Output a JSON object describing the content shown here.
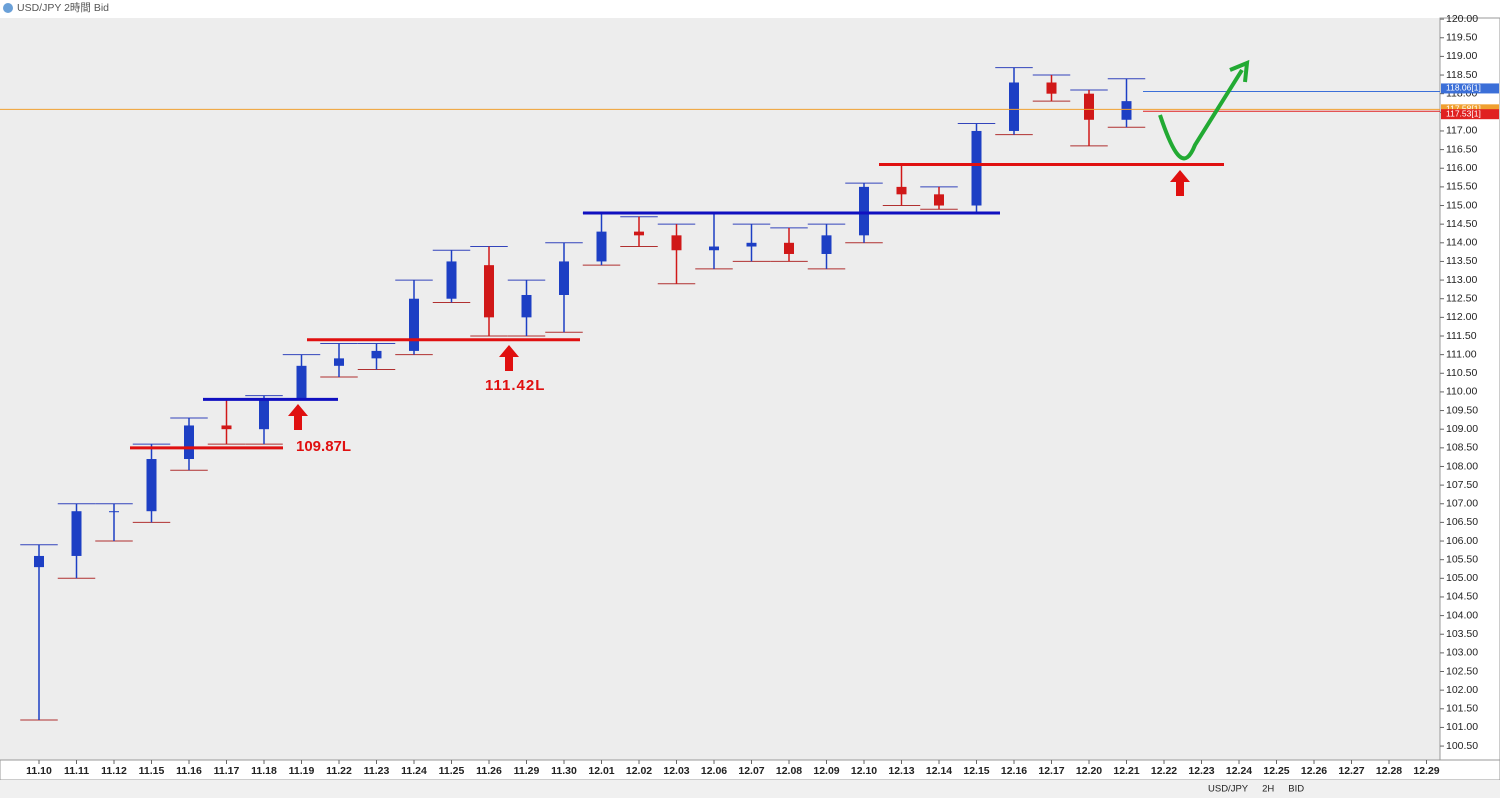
{
  "chart_data": {
    "type": "candlestick",
    "title": "USD/JPY 2時間 Bid",
    "categories": [
      "11.10",
      "11.11",
      "11.12",
      "11.15",
      "11.16",
      "11.17",
      "11.18",
      "11.19",
      "11.22",
      "11.23",
      "11.24",
      "11.25",
      "11.26",
      "11.29",
      "11.30",
      "12.01",
      "12.02",
      "12.03",
      "12.06",
      "12.07",
      "12.08",
      "12.09",
      "12.10",
      "12.13",
      "12.14",
      "12.15",
      "12.16",
      "12.17",
      "12.20",
      "12.21",
      "12.22",
      "12.23",
      "12.24",
      "12.25",
      "12.26",
      "12.27",
      "12.28",
      "12.29"
    ],
    "open": [
      105.3,
      105.6,
      106.8,
      106.8,
      108.2,
      109.1,
      109.0,
      109.8,
      110.7,
      110.9,
      111.1,
      112.5,
      113.4,
      112.0,
      112.6,
      113.5,
      114.3,
      114.2,
      113.8,
      113.9,
      114.0,
      113.7,
      114.2,
      115.5,
      115.3,
      115.0,
      117.0,
      118.3,
      118.0,
      117.3,
      null,
      null,
      null,
      null,
      null,
      null,
      null,
      null
    ],
    "high": [
      105.9,
      107.0,
      107.0,
      108.6,
      109.3,
      109.8,
      109.9,
      111.0,
      111.3,
      111.3,
      113.0,
      113.8,
      113.9,
      113.0,
      114.0,
      114.8,
      114.7,
      114.5,
      114.8,
      114.5,
      114.4,
      114.5,
      115.6,
      116.1,
      115.5,
      117.2,
      118.7,
      118.5,
      118.1,
      118.4,
      null,
      null,
      null,
      null,
      null,
      null,
      null,
      null
    ],
    "low": [
      101.2,
      105.0,
      106.0,
      106.5,
      107.9,
      108.6,
      108.6,
      109.8,
      110.4,
      110.6,
      111.0,
      112.4,
      111.5,
      111.5,
      111.6,
      113.4,
      113.9,
      112.9,
      113.3,
      113.5,
      113.5,
      113.3,
      114.0,
      115.0,
      114.9,
      114.8,
      116.9,
      117.8,
      116.6,
      117.1,
      null,
      null,
      null,
      null,
      null,
      null,
      null,
      null
    ],
    "close": [
      105.6,
      106.8,
      106.8,
      108.2,
      109.1,
      109.0,
      109.8,
      110.7,
      110.9,
      111.1,
      112.5,
      113.5,
      112.0,
      112.6,
      113.5,
      114.3,
      114.2,
      113.8,
      113.9,
      114.0,
      113.7,
      114.2,
      115.5,
      115.3,
      115.0,
      117.0,
      118.3,
      118.0,
      117.3,
      117.8,
      null,
      null,
      null,
      null,
      null,
      null,
      null,
      null
    ],
    "up_color": "#1d3fc4",
    "down_color": "#d01818",
    "ylim": [
      100.18,
      120.03
    ],
    "yticks": [
      {
        "value": 100.5,
        "label": "100.50"
      },
      {
        "value": 101,
        "label": "101.00"
      },
      {
        "value": 101.5,
        "label": "101.50"
      },
      {
        "value": 102,
        "label": "102.00"
      },
      {
        "value": 102.5,
        "label": "102.50"
      },
      {
        "value": 103,
        "label": "103.00"
      },
      {
        "value": 103.5,
        "label": "103.50"
      },
      {
        "value": 104,
        "label": "104.00"
      },
      {
        "value": 104.5,
        "label": "104.50"
      },
      {
        "value": 105,
        "label": "105.00"
      },
      {
        "value": 105.5,
        "label": "105.50"
      },
      {
        "value": 106,
        "label": "106.00"
      },
      {
        "value": 106.5,
        "label": "106.50"
      },
      {
        "value": 107,
        "label": "107.00"
      },
      {
        "value": 107.5,
        "label": "107.50"
      },
      {
        "value": 108,
        "label": "108.00"
      },
      {
        "value": 108.5,
        "label": "108.50"
      },
      {
        "value": 109,
        "label": "109.00"
      },
      {
        "value": 109.5,
        "label": "109.50"
      },
      {
        "value": 110,
        "label": "110.00"
      },
      {
        "value": 110.5,
        "label": "110.50"
      },
      {
        "value": 111,
        "label": "111.00"
      },
      {
        "value": 111.5,
        "label": "111.50"
      },
      {
        "value": 112,
        "label": "112.00"
      },
      {
        "value": 112.5,
        "label": "112.50"
      },
      {
        "value": 113,
        "label": "113.00"
      },
      {
        "value": 113.5,
        "label": "113.50"
      },
      {
        "value": 114,
        "label": "114.00"
      },
      {
        "value": 114.5,
        "label": "114.50"
      },
      {
        "value": 115,
        "label": "115.00"
      },
      {
        "value": 115.5,
        "label": "115.50"
      },
      {
        "value": 116,
        "label": "116.00"
      },
      {
        "value": 116.5,
        "label": "116.50"
      },
      {
        "value": 117,
        "label": "117.00"
      },
      {
        "value": 117.5,
        "label": "117.50"
      },
      {
        "value": 118,
        "label": "118.00"
      },
      {
        "value": 118.5,
        "label": "118.50"
      },
      {
        "value": 119,
        "label": "119.00"
      },
      {
        "value": 119.5,
        "label": "119.50"
      },
      {
        "value": 120,
        "label": "120.00"
      }
    ],
    "levels": [
      {
        "value": 108.5,
        "color": "#e01010"
      },
      {
        "value": 109.8,
        "color": "#1010c0"
      },
      {
        "value": 111.4,
        "color": "#e01010"
      },
      {
        "value": 114.8,
        "color": "#1010c0"
      },
      {
        "value": 116.1,
        "color": "#e01010"
      }
    ],
    "price_lines": [
      {
        "value": 118.06,
        "label": "118.06[1]",
        "color": "#3b6fd8"
      },
      {
        "value": 117.58,
        "label": "117.58[1]",
        "color": "#f0a030"
      },
      {
        "value": 117.53,
        "label": "117.53[1]",
        "color": "#e02020"
      }
    ],
    "annotations": [
      {
        "text": "109.87L",
        "color": "#e01010"
      },
      {
        "text": "111.42L",
        "color": "#e01010"
      }
    ],
    "toolbar": [
      "USD/JPY",
      "2H",
      "BID"
    ]
  }
}
